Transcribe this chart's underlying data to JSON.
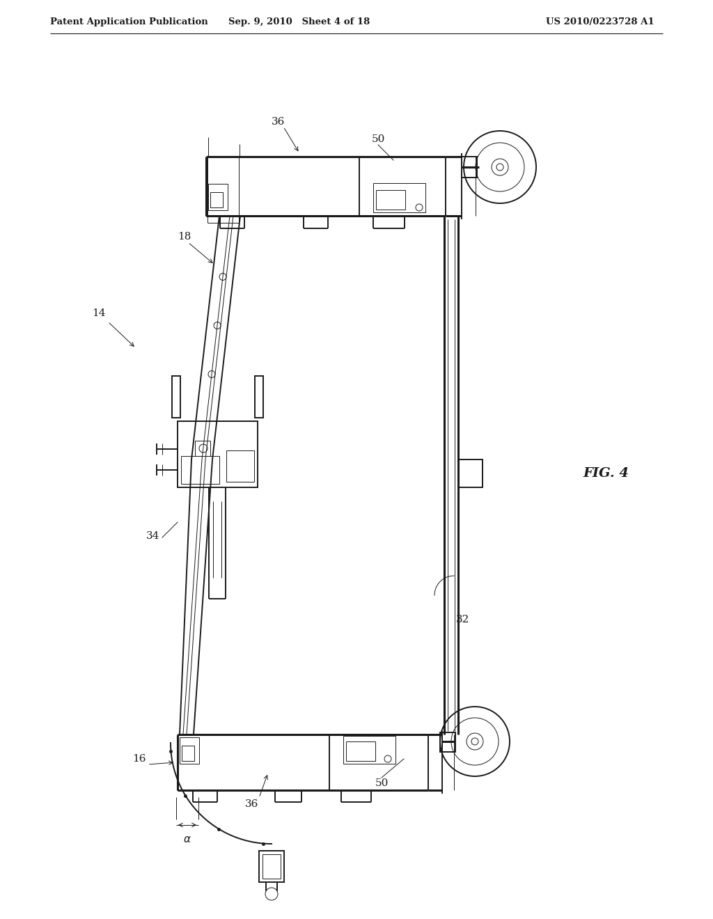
{
  "bg_color": "#ffffff",
  "line_color": "#1a1a1a",
  "fig_width": 10.24,
  "fig_height": 13.2,
  "header_left": "Patent Application Publication",
  "header_center": "Sep. 9, 2010   Sheet 4 of 18",
  "header_right": "US 2010/0223728 A1",
  "fig_label": "FIG. 4",
  "lw_main": 1.4,
  "lw_thin": 0.7,
  "lw_thick": 2.2
}
